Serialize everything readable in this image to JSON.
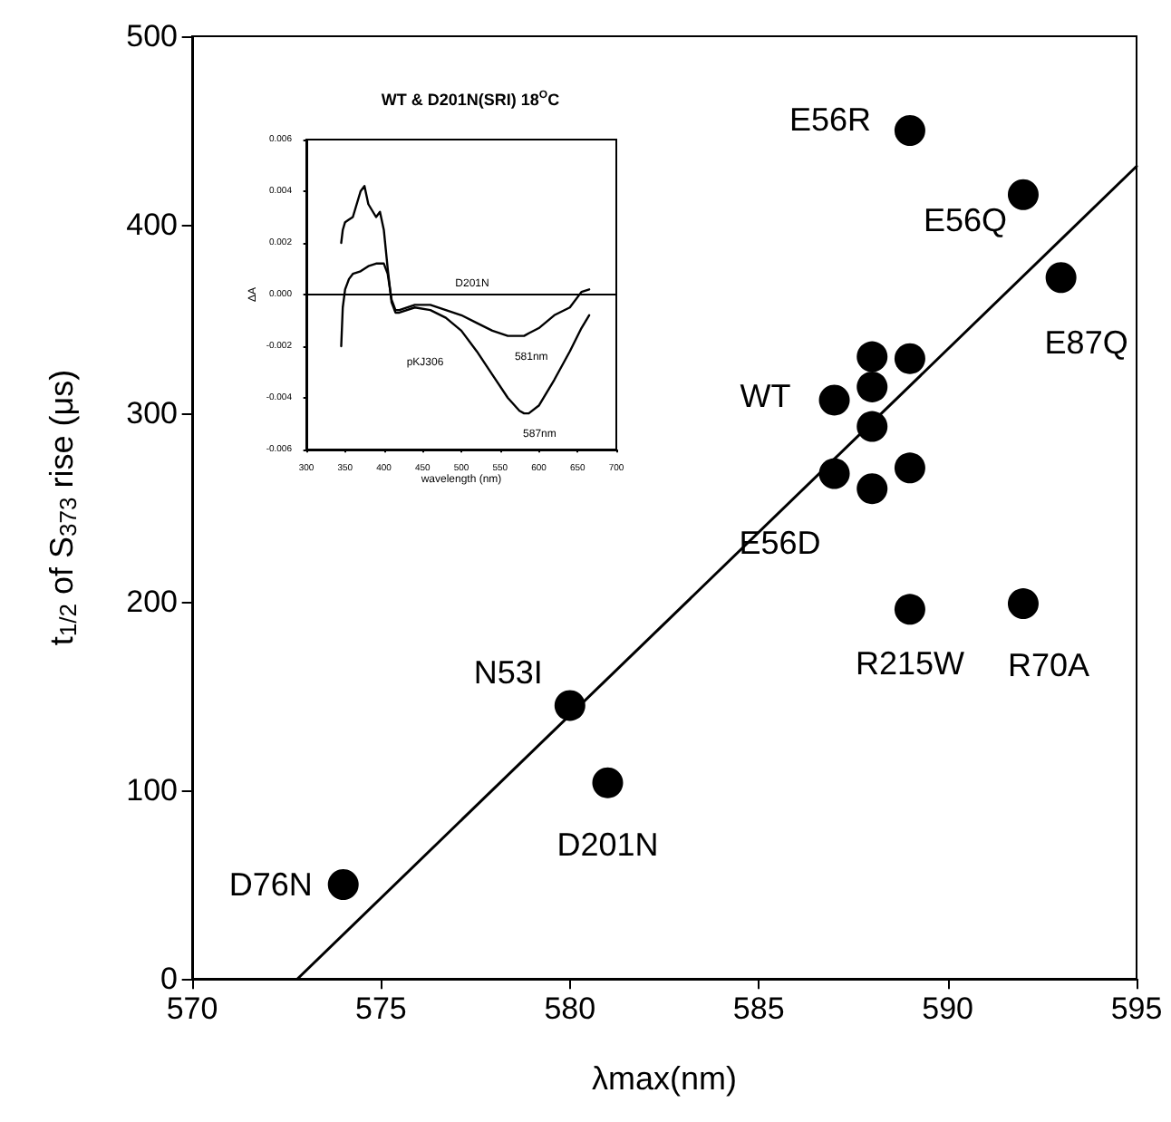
{
  "chart_data": [
    {
      "type": "scatter",
      "xlabel": "λmax(nm)",
      "ylabel": "t$_{1/2}$ of S$_{373}$ rise (μs)",
      "xlim": [
        570,
        595
      ],
      "xticks": [
        570,
        575,
        580,
        585,
        590,
        595
      ],
      "ylim": [
        0,
        500
      ],
      "yticks": [
        0,
        100,
        200,
        300,
        400,
        500
      ],
      "grid": false,
      "legend": false,
      "marker": "circle",
      "series": [
        {
          "type": "scatter",
          "color": "#000000",
          "x": [
            574,
            580,
            581,
            587,
            587,
            588,
            588,
            588,
            588,
            589,
            589,
            589,
            589,
            592,
            593,
            592
          ],
          "values": [
            50,
            145,
            104,
            307,
            268,
            330,
            314,
            293,
            260,
            329,
            271,
            196,
            450,
            416,
            372,
            199
          ]
        },
        {
          "type": "line",
          "color": "#000000",
          "marker": "none",
          "x": [
            572.79,
            595
          ],
          "values": [
            0,
            431
          ]
        }
      ],
      "annotations": [
        {
          "text": "D76N",
          "x": 574,
          "y": 50
        },
        {
          "text": "N53I",
          "x": 580,
          "y": 145
        },
        {
          "text": "D201N",
          "x": 581,
          "y": 104
        },
        {
          "text": "WT",
          "x": 587,
          "y": 307
        },
        {
          "text": "E56D",
          "x": 587,
          "y": 268
        },
        {
          "text": "R215W",
          "x": 589,
          "y": 196
        },
        {
          "text": "E56R",
          "x": 589,
          "y": 450
        },
        {
          "text": "E56Q",
          "x": 592,
          "y": 416
        },
        {
          "text": "E87Q",
          "x": 593,
          "y": 372
        },
        {
          "text": "R70A",
          "x": 592,
          "y": 199
        }
      ]
    },
    {
      "type": "line",
      "title": "WT & D201N(SRI) 18$^{O}$C",
      "xlabel": "wavelength (nm)",
      "ylabel": "ΔA",
      "xlim": [
        300,
        700
      ],
      "xticks": [
        300,
        350,
        400,
        450,
        500,
        550,
        600,
        650,
        700
      ],
      "ylim": [
        -0.006,
        0.006
      ],
      "yticks": [
        {
          "value": -0.006,
          "label": "-0.006"
        },
        {
          "value": -0.004,
          "label": "-0.004"
        },
        {
          "value": -0.002,
          "label": "-0.002"
        },
        {
          "value": 0,
          "label": "0.000"
        },
        {
          "value": 0.002,
          "label": "0.002"
        },
        {
          "value": 0.004,
          "label": "0.004"
        },
        {
          "value": 0.006,
          "label": "0.006"
        }
      ],
      "grid": false,
      "legend": false,
      "marker": "none",
      "x": [
        345,
        347,
        350,
        355,
        360,
        370,
        375,
        380,
        390,
        395,
        400,
        405,
        410,
        415,
        420,
        440,
        460,
        480,
        500,
        520,
        540,
        560,
        575,
        581,
        587,
        600,
        620,
        640,
        655,
        665
      ],
      "series": [
        {
          "name": "D201N",
          "color": "#000000",
          "values": [
            -0.002,
            -0.0005,
            0.0002,
            0.0006,
            0.0008,
            0.0009,
            0.001,
            0.0011,
            0.0012,
            0.0012,
            0.0012,
            0.0008,
            -0.0002,
            -0.0006,
            -0.0006,
            -0.0004,
            -0.0004,
            -0.0006,
            -0.0008,
            -0.0011,
            -0.0014,
            -0.0016,
            -0.0016,
            -0.0016,
            -0.0015,
            -0.0013,
            -0.0008,
            -0.0005,
            0.0001,
            0.0002
          ]
        },
        {
          "name": "pKJ306",
          "color": "#000000",
          "values": [
            0.002,
            0.0025,
            0.0028,
            0.0029,
            0.003,
            0.004,
            0.0042,
            0.0035,
            0.003,
            0.0032,
            0.0025,
            0.001,
            -0.0003,
            -0.0007,
            -0.0007,
            -0.0005,
            -0.0006,
            -0.0009,
            -0.0014,
            -0.0022,
            -0.0031,
            -0.004,
            -0.0045,
            -0.0046,
            -0.0046,
            -0.0043,
            -0.0033,
            -0.0022,
            -0.0013,
            -0.0008
          ]
        }
      ],
      "ref_lines": [
        {
          "axis": "y",
          "value": 0,
          "color": "#000000"
        }
      ],
      "annotations": [
        {
          "text": "581nm",
          "x": 581,
          "y": -0.0016
        },
        {
          "text": "587nm",
          "x": 587,
          "y": -0.0046
        }
      ]
    }
  ]
}
